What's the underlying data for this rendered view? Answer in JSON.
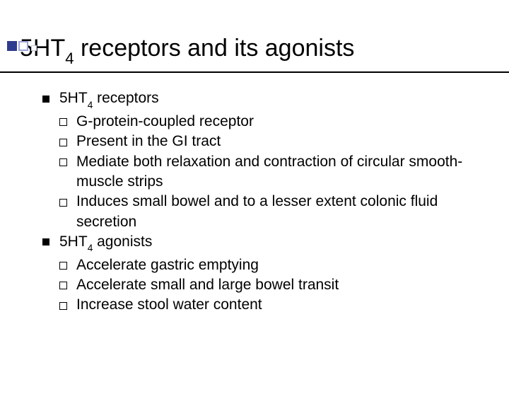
{
  "title_pre": "5HT",
  "title_sub": "4",
  "title_post": " receptors and its agonists",
  "sections": [
    {
      "heading_pre": "5HT",
      "heading_sub": "4",
      "heading_post": " receptors",
      "items": [
        "G-protein-coupled receptor",
        "Present in the GI tract",
        "Mediate both relaxation and contraction of circular smooth-muscle strips",
        "Induces small bowel and to a lesser extent colonic fluid secretion"
      ]
    },
    {
      "heading_pre": "5HT",
      "heading_sub": "4",
      "heading_post": " agonists",
      "items": [
        "Accelerate gastric emptying",
        "Accelerate small and large bowel transit",
        "Increase stool water content"
      ]
    }
  ],
  "colors": {
    "accent": "#2f3b8f",
    "outline": "#9aa3d4",
    "text": "#000000",
    "bg": "#ffffff"
  }
}
